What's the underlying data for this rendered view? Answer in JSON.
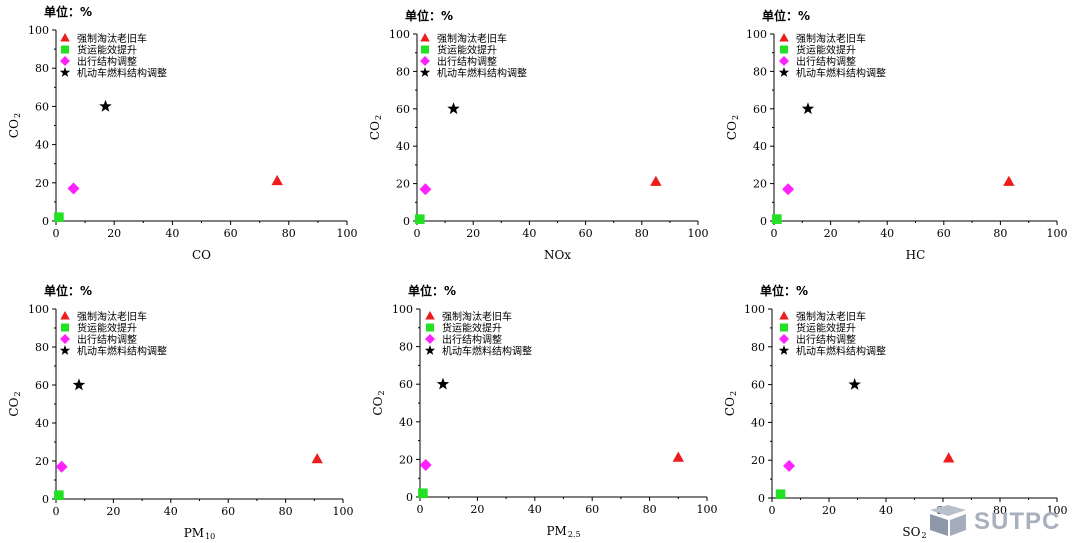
{
  "legend_items": [
    {
      "label": "强制淘汰老旧车",
      "marker": "triangle",
      "color": "#ee1c1c"
    },
    {
      "label": "货运能效提升",
      "marker": "square",
      "color": "#22e022"
    },
    {
      "label": "出行结构调整",
      "marker": "diamond",
      "color": "#ff22ff"
    },
    {
      "label": "机动车燃料结构调整",
      "marker": "star",
      "color": "#000000"
    }
  ],
  "watermark": {
    "text": "SUTPC"
  },
  "chart_data": [
    {
      "type": "scatter",
      "unit_label": "单位：%",
      "xlabel": "CO",
      "xlabel_sub": "",
      "ylabel": "CO",
      "ylabel_sub": "2",
      "xlim": [
        0,
        100
      ],
      "ylim": [
        0,
        100
      ],
      "xticks": [
        0,
        20,
        40,
        60,
        80,
        100
      ],
      "yticks": [
        0,
        20,
        40,
        60,
        80,
        100
      ],
      "points": [
        {
          "x": 76,
          "y": 21
        },
        {
          "x": 1,
          "y": 2
        },
        {
          "x": 6,
          "y": 17
        },
        {
          "x": 17,
          "y": 60
        }
      ]
    },
    {
      "type": "scatter",
      "unit_label": "单位：%",
      "xlabel": "NOx",
      "xlabel_sub": "",
      "ylabel": "CO",
      "ylabel_sub": "2",
      "xlim": [
        0,
        100
      ],
      "ylim": [
        0,
        100
      ],
      "xticks": [
        0,
        20,
        40,
        60,
        80,
        100
      ],
      "yticks": [
        0,
        20,
        40,
        60,
        80,
        100
      ],
      "points": [
        {
          "x": 85,
          "y": 21
        },
        {
          "x": 1,
          "y": 1
        },
        {
          "x": 3,
          "y": 17
        },
        {
          "x": 13,
          "y": 60
        }
      ]
    },
    {
      "type": "scatter",
      "unit_label": "单位：%",
      "xlabel": "HC",
      "xlabel_sub": "",
      "ylabel": "CO",
      "ylabel_sub": "2",
      "xlim": [
        0,
        100
      ],
      "ylim": [
        0,
        100
      ],
      "xticks": [
        0,
        20,
        40,
        60,
        80,
        100
      ],
      "yticks": [
        0,
        20,
        40,
        60,
        80,
        100
      ],
      "points": [
        {
          "x": 83,
          "y": 21
        },
        {
          "x": 1,
          "y": 1
        },
        {
          "x": 5,
          "y": 17
        },
        {
          "x": 12,
          "y": 60
        }
      ]
    },
    {
      "type": "scatter",
      "unit_label": "单位：%",
      "xlabel": "PM",
      "xlabel_sub": "10",
      "ylabel": "CO",
      "ylabel_sub": "2",
      "xlim": [
        0,
        100
      ],
      "ylim": [
        0,
        100
      ],
      "xticks": [
        0,
        20,
        40,
        60,
        80,
        100
      ],
      "yticks": [
        0,
        20,
        40,
        60,
        80,
        100
      ],
      "points": [
        {
          "x": 91,
          "y": 21
        },
        {
          "x": 1,
          "y": 2
        },
        {
          "x": 2,
          "y": 17
        },
        {
          "x": 8,
          "y": 60
        }
      ]
    },
    {
      "type": "scatter",
      "unit_label": "单位：%",
      "xlabel": "PM",
      "xlabel_sub": "2.5",
      "ylabel": "CO",
      "ylabel_sub": "2",
      "xlim": [
        0,
        100
      ],
      "ylim": [
        0,
        100
      ],
      "xticks": [
        0,
        20,
        40,
        60,
        80,
        100
      ],
      "yticks": [
        0,
        20,
        40,
        60,
        80,
        100
      ],
      "points": [
        {
          "x": 90,
          "y": 21
        },
        {
          "x": 1,
          "y": 2
        },
        {
          "x": 2,
          "y": 17
        },
        {
          "x": 8,
          "y": 60
        }
      ]
    },
    {
      "type": "scatter",
      "unit_label": "单位：%",
      "xlabel": "SO",
      "xlabel_sub": "2",
      "ylabel": "CO",
      "ylabel_sub": "2",
      "xlim": [
        0,
        100
      ],
      "ylim": [
        0,
        100
      ],
      "xticks": [
        0,
        20,
        40,
        60,
        80,
        100
      ],
      "yticks": [
        0,
        20,
        40,
        60,
        80,
        100
      ],
      "points": [
        {
          "x": 62,
          "y": 21
        },
        {
          "x": 3,
          "y": 2
        },
        {
          "x": 6,
          "y": 17
        },
        {
          "x": 29,
          "y": 60
        }
      ]
    }
  ]
}
